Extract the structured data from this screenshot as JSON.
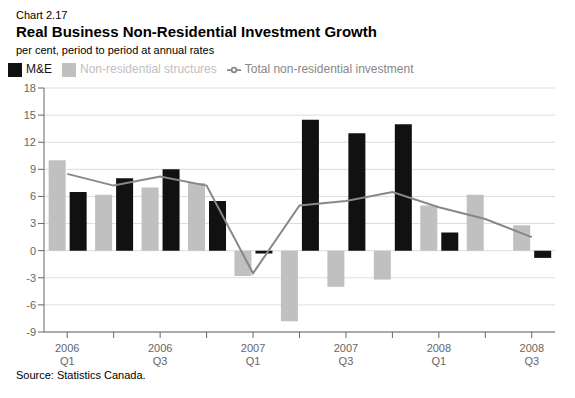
{
  "chart_data": {
    "type": "bar",
    "title": "Real Business Non-Residential Investment Growth",
    "ylabel": "per cent, period to period at annual rates",
    "annotations": [
      "Chart 2.17",
      "Source: Statistics Canada."
    ],
    "categories": [
      "2006\nQ1",
      null,
      "2006\nQ3",
      null,
      "2007\nQ1",
      null,
      "2007\nQ3",
      null,
      "2008\nQ1",
      null,
      "2008\nQ3"
    ],
    "series": [
      {
        "name": "Non-residential structures",
        "type": "bar",
        "color": "#c0c0c0",
        "values": [
          10.0,
          6.2,
          7.0,
          7.5,
          -2.8,
          -7.8,
          -4.0,
          -3.2,
          5.0,
          6.2,
          2.8
        ]
      },
      {
        "name": "M&E",
        "type": "bar",
        "color": "#111111",
        "values": [
          6.5,
          8.0,
          9.0,
          5.5,
          -0.3,
          14.5,
          13.0,
          14.0,
          2.0,
          0.0,
          -0.8
        ]
      },
      {
        "name": "Total non-residential investment",
        "type": "line",
        "color": "#888888",
        "values": [
          8.5,
          7.2,
          8.2,
          7.2,
          -2.5,
          5.0,
          5.5,
          6.5,
          4.8,
          3.5,
          1.5
        ]
      }
    ],
    "ylim": [
      -9,
      18
    ],
    "yticks": [
      -9,
      -6,
      -3,
      0,
      3,
      6,
      9,
      12,
      15,
      18
    ],
    "grid": true,
    "legend": "upper left"
  }
}
